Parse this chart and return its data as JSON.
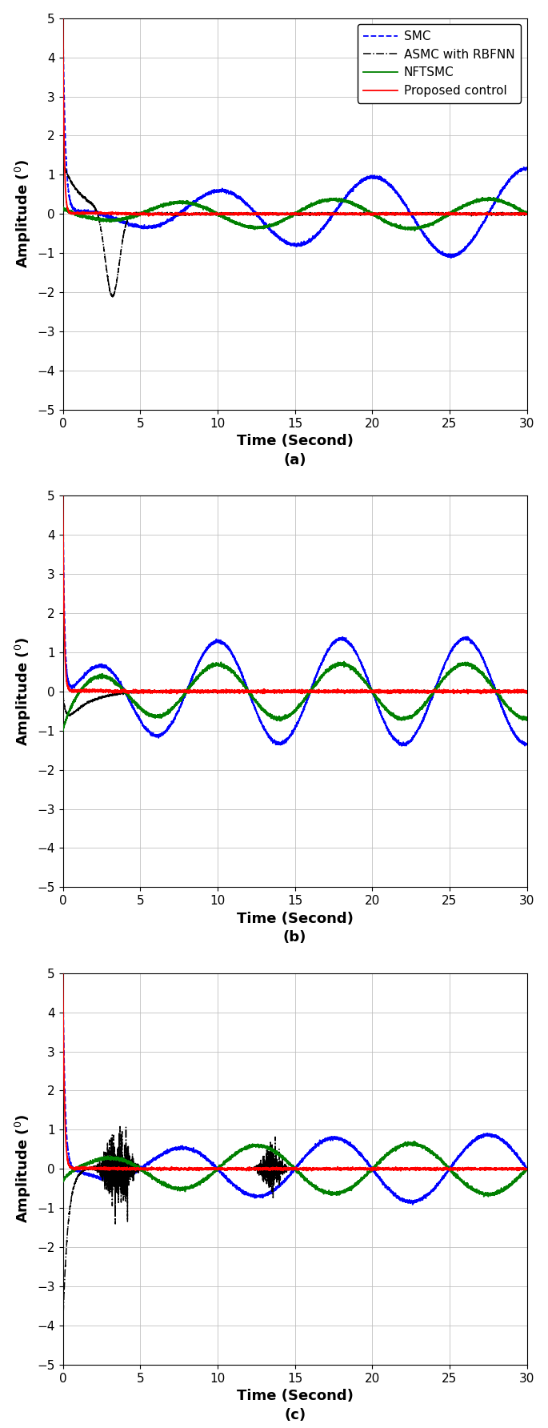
{
  "figsize": [
    6.85,
    17.84
  ],
  "dpi": 100,
  "xlim": [
    0,
    30
  ],
  "ylim": [
    -5,
    5
  ],
  "xticks": [
    0,
    5,
    10,
    15,
    20,
    25,
    30
  ],
  "yticks": [
    -5,
    -4,
    -3,
    -2,
    -1,
    0,
    1,
    2,
    3,
    4,
    5
  ],
  "xlabel": "Time (Second)",
  "ylabel": "Amplitude (°)",
  "legend_labels": [
    "SMC",
    "ASMC with RBFNN",
    "NFTSMC",
    "Proposed control"
  ],
  "colors": {
    "SMC": "#0000FF",
    "ASMC": "#000000",
    "NFTSMC": "#008000",
    "Proposed": "#FF0000"
  },
  "grid_color": "#C0C0C0",
  "background_color": "#FFFFFF",
  "subplot_labels": [
    "(a)",
    "(b)",
    "(c)"
  ],
  "label_fontsize": 13,
  "tick_fontsize": 11,
  "legend_fontsize": 11,
  "sublabel_fontsize": 13
}
